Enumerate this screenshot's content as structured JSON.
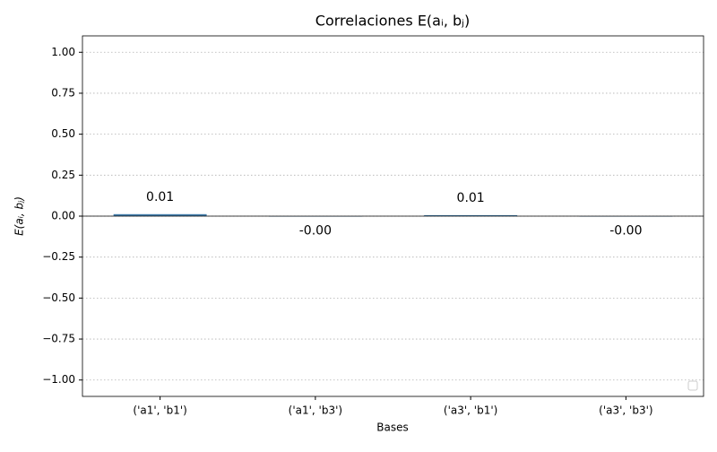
{
  "chart_data": {
    "type": "bar",
    "title": "Correlaciones E(aᵢ, bⱼ)",
    "x_label": "Bases",
    "y_label": "E(aᵢ, bⱼ)",
    "categories": [
      "('a1', 'b1')",
      "('a1', 'b3')",
      "('a3', 'b1')",
      "('a3', 'b3')"
    ],
    "values": [
      0.012,
      -0.002,
      0.006,
      -0.002
    ],
    "value_labels": [
      "0.01",
      "-0.00",
      "0.01",
      "-0.00"
    ],
    "color": "#3f7aa8",
    "ylim": [
      -1.1,
      1.1
    ],
    "yticks": [
      {
        "value": -1,
        "label": "−1.00"
      },
      {
        "value": -0.75,
        "label": "−0.75"
      },
      {
        "value": -0.5,
        "label": "−0.50"
      },
      {
        "value": -0.25,
        "label": "−0.25"
      },
      {
        "value": 0,
        "label": "0.00"
      },
      {
        "value": 0.25,
        "label": "0.25"
      },
      {
        "value": 0.5,
        "label": "0.50"
      },
      {
        "value": 0.75,
        "label": "0.75"
      },
      {
        "value": 1,
        "label": "1.00"
      }
    ],
    "grid": true
  }
}
